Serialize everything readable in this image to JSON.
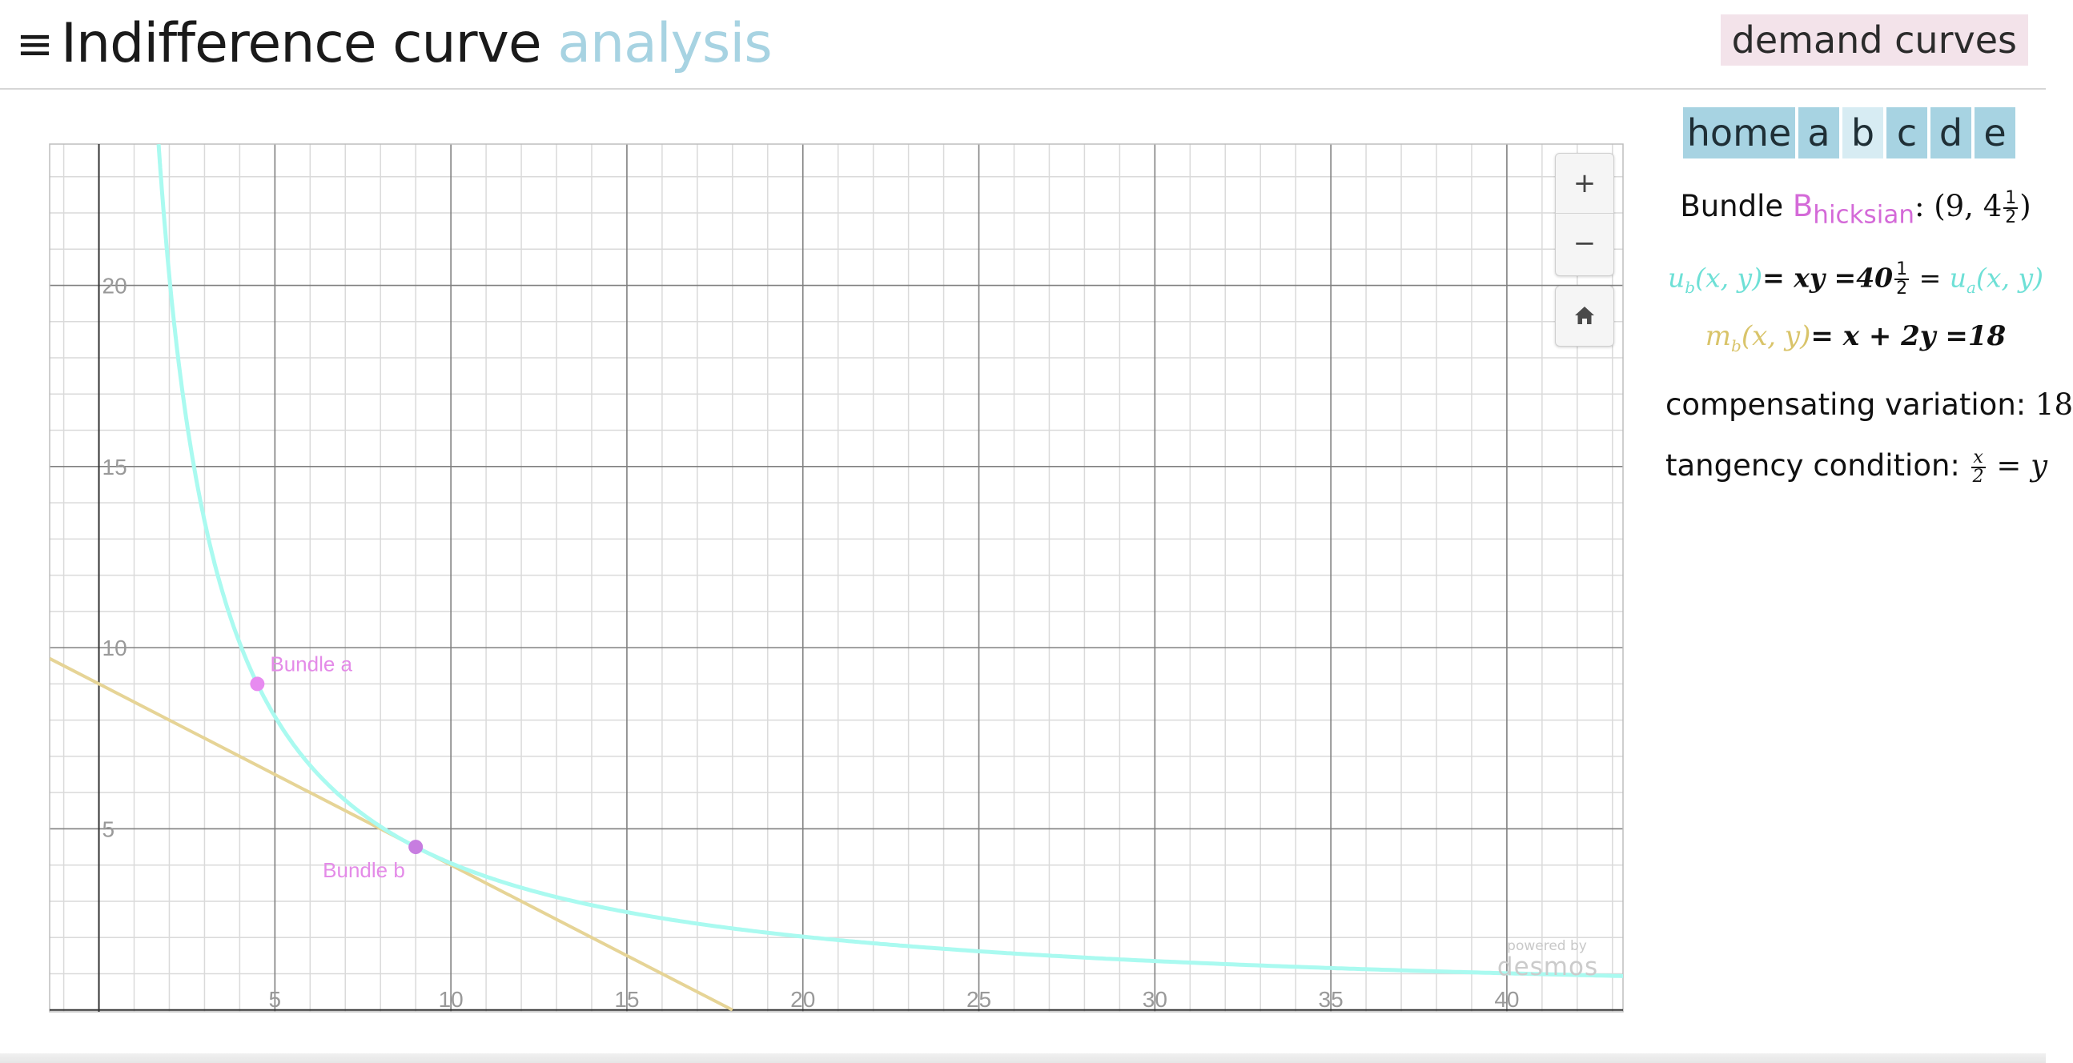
{
  "header": {
    "menu_icon": "hamburger-menu-icon",
    "title_main": "Indifference curve",
    "title_accent": "analysis",
    "demand_button": "demand curves",
    "accent_color": "#a7d3e2"
  },
  "nav": {
    "tabs": [
      {
        "label": "home",
        "active": false
      },
      {
        "label": "a",
        "active": false
      },
      {
        "label": "b",
        "active": true
      },
      {
        "label": "c",
        "active": false
      },
      {
        "label": "d",
        "active": false
      },
      {
        "label": "e",
        "active": false
      }
    ]
  },
  "panel": {
    "bundle_prefix": "Bundle ",
    "bundle_name": "B",
    "bundle_sub": "hicksian",
    "bundle_value_start": ": (9, 4",
    "bundle_frac_num": "1",
    "bundle_frac_den": "2",
    "bundle_value_end": ")",
    "utility_lhs": "u",
    "utility_lhs_sub": "b",
    "utility_lhs_args": "(x, y)",
    "utility_mid": "= xy =40",
    "utility_frac_num": "1",
    "utility_frac_den": "2",
    "utility_eq": " = ",
    "utility_rhs": "u",
    "utility_rhs_sub": "a",
    "utility_rhs_args": "(x, y)",
    "budget_lhs": "m",
    "budget_lhs_sub": "b",
    "budget_lhs_args": "(x, y)",
    "budget_rhs": "= x + 2y =18",
    "cv_label": "compensating variation: ",
    "cv_value": "18",
    "tangency_label": "tangency condition: ",
    "tangency_frac_num": "x",
    "tangency_frac_den": "2",
    "tangency_rhs": " = y"
  },
  "graph_controls": {
    "zoom_in": "+",
    "zoom_out": "−",
    "home_icon": "home-icon",
    "powered_by": "powered by",
    "brand": "desmos"
  },
  "chart_data": {
    "type": "line",
    "x_ticks": [
      5,
      10,
      15,
      20,
      25,
      30,
      35,
      40
    ],
    "y_ticks": [
      5,
      10,
      15,
      20
    ],
    "xlim": [
      -1.4,
      43.3
    ],
    "ylim": [
      -0.05,
      23.9
    ],
    "grid": true,
    "series": [
      {
        "name": "u_b(x, y) = xy = 40.5",
        "kind": "indifference",
        "color": "#aafaf0",
        "k": 40.5
      },
      {
        "name": "m_b(x, y) = x + 2y = 18",
        "kind": "budget",
        "color": "#e6d496",
        "intercept_x": 18,
        "intercept_y": 9
      }
    ],
    "points": [
      {
        "label": "Bundle a",
        "x": 4.5,
        "y": 9,
        "color": "#e78bf0"
      },
      {
        "label": "Bundle b",
        "x": 9,
        "y": 4.5,
        "color": "#c77de0"
      }
    ],
    "colors": {
      "curve": "#aafaf0",
      "budget": "#e6d496",
      "point": "#e78bf0",
      "point_label": "#e48be8",
      "axis": "#333333",
      "major_grid": "#808080",
      "minor_grid": "#dadada",
      "tick_label": "#999999"
    }
  }
}
